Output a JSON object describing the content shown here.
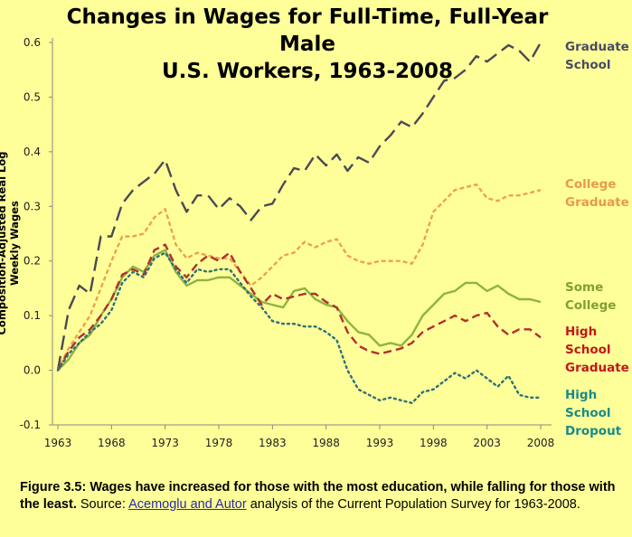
{
  "chart_data": {
    "type": "line",
    "title": "Changes in Wages for Full-Time, Full-Year Male U.S. Workers, 1963-2008",
    "title_lines": [
      "Changes in Wages for Full-Time, Full-Year Male",
      "U.S. Workers, 1963-2008"
    ],
    "xlabel": "",
    "ylabel": "Composition-Adjusted Real Log Weekly Wages",
    "xlim": [
      1963,
      2008
    ],
    "ylim": [
      -0.1,
      0.6
    ],
    "x_ticks": [
      "1963",
      "1968",
      "1973",
      "1978",
      "1983",
      "1988",
      "1993",
      "1998",
      "2003",
      "2008"
    ],
    "y_ticks": [
      "-0.1",
      "0.0",
      "0.1",
      "0.2",
      "0.3",
      "0.4",
      "0.5",
      "0.6"
    ],
    "grid": false,
    "legend_placement": "right (inline labels)",
    "x_start": 1963,
    "series": [
      {
        "name": "Graduate School",
        "label_lines": [
          "Graduate",
          "School"
        ],
        "color": "#4a4a55",
        "text_color": "#4a4a66",
        "dash": "16,7",
        "values": [
          0,
          0.11,
          0.155,
          0.14,
          0.245,
          0.245,
          0.305,
          0.33,
          0.345,
          0.36,
          0.385,
          0.33,
          0.29,
          0.32,
          0.32,
          0.295,
          0.315,
          0.3,
          0.275,
          0.3,
          0.305,
          0.34,
          0.37,
          0.365,
          0.395,
          0.375,
          0.395,
          0.365,
          0.39,
          0.38,
          0.41,
          0.43,
          0.455,
          0.445,
          0.47,
          0.5,
          0.53,
          0.535,
          0.55,
          0.575,
          0.565,
          0.58,
          0.595,
          0.585,
          0.565,
          0.6
        ]
      },
      {
        "name": "College Graduate",
        "label_lines": [
          "College",
          "Graduate"
        ],
        "color": "#f0a050",
        "text_color": "#e89a48",
        "dash": "5,3",
        "values": [
          0,
          0.04,
          0.07,
          0.1,
          0.15,
          0.2,
          0.245,
          0.245,
          0.25,
          0.28,
          0.295,
          0.23,
          0.205,
          0.215,
          0.21,
          0.205,
          0.205,
          0.18,
          0.155,
          0.17,
          0.19,
          0.21,
          0.215,
          0.235,
          0.225,
          0.235,
          0.24,
          0.21,
          0.2,
          0.195,
          0.2,
          0.2,
          0.2,
          0.195,
          0.23,
          0.29,
          0.31,
          0.33,
          0.335,
          0.34,
          0.315,
          0.31,
          0.32,
          0.32,
          0.325,
          0.33
        ]
      },
      {
        "name": "Some College",
        "label_lines": [
          "Some",
          "College"
        ],
        "color": "#8db441",
        "text_color": "#7fa032",
        "dash": "",
        "values": [
          0,
          0.02,
          0.05,
          0.065,
          0.1,
          0.13,
          0.17,
          0.19,
          0.18,
          0.21,
          0.22,
          0.18,
          0.155,
          0.165,
          0.165,
          0.17,
          0.17,
          0.155,
          0.14,
          0.125,
          0.12,
          0.115,
          0.145,
          0.15,
          0.13,
          0.12,
          0.115,
          0.09,
          0.07,
          0.065,
          0.045,
          0.05,
          0.045,
          0.065,
          0.1,
          0.12,
          0.14,
          0.145,
          0.16,
          0.16,
          0.145,
          0.155,
          0.14,
          0.13,
          0.13,
          0.125
        ]
      },
      {
        "name": "High School Graduate",
        "label_lines": [
          "High",
          "School",
          "Graduate"
        ],
        "color": "#b03030",
        "text_color": "#c01818",
        "dash": "9,5",
        "values": [
          0,
          0.035,
          0.06,
          0.075,
          0.1,
          0.13,
          0.175,
          0.185,
          0.175,
          0.22,
          0.23,
          0.19,
          0.17,
          0.195,
          0.21,
          0.2,
          0.215,
          0.18,
          0.15,
          0.12,
          0.14,
          0.13,
          0.135,
          0.14,
          0.14,
          0.125,
          0.115,
          0.07,
          0.045,
          0.035,
          0.03,
          0.035,
          0.04,
          0.05,
          0.07,
          0.08,
          0.09,
          0.1,
          0.09,
          0.1,
          0.105,
          0.08,
          0.065,
          0.075,
          0.075,
          0.06
        ]
      },
      {
        "name": "High School Dropout",
        "label_lines": [
          "High",
          "School",
          "Dropout"
        ],
        "color": "#2f6f7a",
        "text_color": "#1a8a8a",
        "dash": "2,4",
        "values": [
          0,
          0.03,
          0.05,
          0.07,
          0.085,
          0.11,
          0.16,
          0.18,
          0.17,
          0.205,
          0.215,
          0.185,
          0.16,
          0.185,
          0.18,
          0.185,
          0.185,
          0.16,
          0.135,
          0.115,
          0.09,
          0.085,
          0.085,
          0.08,
          0.08,
          0.07,
          0.055,
          0,
          -0.035,
          -0.045,
          -0.055,
          -0.05,
          -0.055,
          -0.06,
          -0.04,
          -0.035,
          -0.02,
          -0.005,
          -0.015,
          0,
          -0.015,
          -0.03,
          -0.01,
          -0.045,
          -0.05,
          -0.05
        ]
      }
    ]
  },
  "caption": {
    "figure_bold": "Figure 3.5: Wages have increased for those with the most education, while falling for those with the least.",
    "source_prefix": " Source: ",
    "source_link": "Acemoglu and Autor",
    "source_suffix": " analysis of the Current Population Survey for 1963-2008."
  }
}
